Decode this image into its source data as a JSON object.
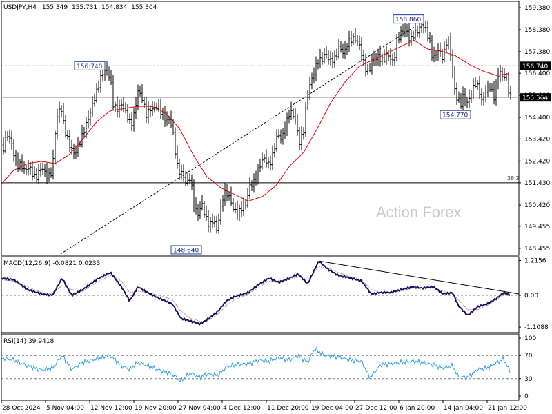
{
  "chart_data": [
    {
      "type": "ohlc",
      "header": {
        "symbol": "USDJPY,H4",
        "open": "155.349",
        "high": "155.731",
        "low": "154.834",
        "close": "155.304"
      },
      "y_ticks": [
        "159.380",
        "158.380",
        "157.380",
        "156.400",
        "155.400",
        "154.400",
        "153.420",
        "152.420",
        "151.430",
        "150.420",
        "149.455",
        "148.455"
      ],
      "ylim": [
        148.2,
        159.6
      ],
      "x_ticks": [
        "28 Oct 2024",
        "5 Nov 04:00",
        "12 Nov 12:00",
        "19 Nov 20:00",
        "27 Nov 04:00",
        "4 Dec 12:00",
        "11 Dec 20:00",
        "19 Dec 04:00",
        "27 Dec 12:00",
        "6 Jan 20:00",
        "14 Jan 04:00",
        "21 Jan 12:00"
      ],
      "price_anchors": [
        [
          0,
          153.2
        ],
        [
          3,
          153.3
        ],
        [
          5,
          153.0
        ],
        [
          10,
          153.6
        ],
        [
          16,
          153.3
        ],
        [
          21,
          152.6
        ],
        [
          24,
          152.2
        ],
        [
          30,
          152.3
        ],
        [
          36,
          151.9
        ],
        [
          43,
          152.1
        ],
        [
          52,
          151.7
        ],
        [
          60,
          152.0
        ],
        [
          68,
          151.8
        ],
        [
          76,
          152.0
        ],
        [
          81,
          154.0
        ],
        [
          88,
          155.0
        ],
        [
          94,
          153.9
        ],
        [
          102,
          152.9
        ],
        [
          108,
          152.7
        ],
        [
          112,
          153.1
        ],
        [
          120,
          153.6
        ],
        [
          128,
          154.3
        ],
        [
          136,
          155.2
        ],
        [
          141,
          155.7
        ],
        [
          147,
          156.3
        ],
        [
          154,
          156.5
        ],
        [
          160,
          156.2
        ],
        [
          164,
          155.1
        ],
        [
          170,
          154.7
        ],
        [
          178,
          154.9
        ],
        [
          186,
          154.5
        ],
        [
          190,
          154.0
        ],
        [
          196,
          154.6
        ],
        [
          200,
          155.6
        ],
        [
          206,
          155.4
        ],
        [
          212,
          154.5
        ],
        [
          220,
          154.7
        ],
        [
          228,
          155.0
        ],
        [
          234,
          154.6
        ],
        [
          240,
          154.2
        ],
        [
          246,
          154.3
        ],
        [
          250,
          153.9
        ],
        [
          254,
          152.9
        ],
        [
          258,
          152.0
        ],
        [
          264,
          151.8
        ],
        [
          270,
          151.3
        ],
        [
          276,
          151.8
        ],
        [
          282,
          150.3
        ],
        [
          288,
          149.8
        ],
        [
          292,
          150.5
        ],
        [
          298,
          150.0
        ],
        [
          304,
          149.5
        ],
        [
          310,
          149.6
        ],
        [
          314,
          149.2
        ],
        [
          318,
          150.1
        ],
        [
          324,
          151.0
        ],
        [
          330,
          150.8
        ],
        [
          338,
          150.3
        ],
        [
          346,
          150.1
        ],
        [
          352,
          150.3
        ],
        [
          356,
          150.4
        ],
        [
          362,
          151.3
        ],
        [
          368,
          151.5
        ],
        [
          374,
          152.0
        ],
        [
          382,
          152.5
        ],
        [
          390,
          152.3
        ],
        [
          396,
          152.8
        ],
        [
          402,
          153.5
        ],
        [
          408,
          153.4
        ],
        [
          414,
          154.2
        ],
        [
          420,
          154.6
        ],
        [
          428,
          154.2
        ],
        [
          434,
          153.4
        ],
        [
          440,
          153.8
        ],
        [
          444,
          154.9
        ],
        [
          450,
          156.0
        ],
        [
          456,
          156.6
        ],
        [
          460,
          157.0
        ],
        [
          466,
          156.9
        ],
        [
          472,
          157.3
        ],
        [
          478,
          157.0
        ],
        [
          486,
          157.1
        ],
        [
          492,
          157.6
        ],
        [
          498,
          157.2
        ],
        [
          504,
          157.9
        ],
        [
          510,
          158.0
        ],
        [
          516,
          157.8
        ],
        [
          522,
          157.6
        ],
        [
          528,
          156.9
        ],
        [
          534,
          156.3
        ],
        [
          540,
          156.9
        ],
        [
          548,
          157.3
        ],
        [
          556,
          156.9
        ],
        [
          562,
          157.2
        ],
        [
          570,
          157.0
        ],
        [
          576,
          157.9
        ],
        [
          582,
          158.2
        ],
        [
          588,
          158.5
        ],
        [
          594,
          157.9
        ],
        [
          600,
          158.2
        ],
        [
          606,
          158.3
        ],
        [
          612,
          158.6
        ],
        [
          618,
          158.4
        ],
        [
          622,
          158.0
        ],
        [
          626,
          157.2
        ],
        [
          630,
          157.0
        ],
        [
          636,
          157.5
        ],
        [
          642,
          157.2
        ],
        [
          648,
          157.9
        ],
        [
          652,
          157.4
        ],
        [
          656,
          156.4
        ],
        [
          660,
          155.5
        ],
        [
          664,
          155.3
        ],
        [
          668,
          155.0
        ],
        [
          672,
          155.3
        ],
        [
          676,
          154.9
        ],
        [
          682,
          155.5
        ],
        [
          688,
          156.0
        ],
        [
          694,
          155.6
        ],
        [
          698,
          155.1
        ],
        [
          704,
          155.6
        ],
        [
          710,
          155.8
        ],
        [
          716,
          155.3
        ],
        [
          720,
          156.0
        ],
        [
          724,
          156.5
        ],
        [
          728,
          156.2
        ],
        [
          732,
          156.4
        ],
        [
          736,
          155.8
        ],
        [
          740,
          155.3
        ]
      ],
      "moving_average_anchors": [
        [
          0,
          151.3
        ],
        [
          20,
          152.0
        ],
        [
          40,
          152.3
        ],
        [
          60,
          152.4
        ],
        [
          80,
          152.3
        ],
        [
          100,
          152.7
        ],
        [
          120,
          153.4
        ],
        [
          140,
          154.2
        ],
        [
          160,
          154.7
        ],
        [
          180,
          154.8
        ],
        [
          200,
          154.9
        ],
        [
          220,
          154.9
        ],
        [
          240,
          154.6
        ],
        [
          260,
          153.9
        ],
        [
          280,
          152.7
        ],
        [
          300,
          151.7
        ],
        [
          320,
          151.2
        ],
        [
          340,
          150.9
        ],
        [
          360,
          150.6
        ],
        [
          380,
          150.8
        ],
        [
          400,
          151.3
        ],
        [
          420,
          152.2
        ],
        [
          440,
          152.8
        ],
        [
          460,
          153.9
        ],
        [
          480,
          155.1
        ],
        [
          500,
          156.0
        ],
        [
          520,
          156.7
        ],
        [
          540,
          157.0
        ],
        [
          560,
          157.3
        ],
        [
          580,
          157.6
        ],
        [
          600,
          157.9
        ],
        [
          620,
          157.5
        ],
        [
          640,
          157.4
        ],
        [
          660,
          157.2
        ],
        [
          680,
          156.8
        ],
        [
          700,
          156.5
        ],
        [
          720,
          156.3
        ],
        [
          740,
          156.4
        ]
      ],
      "annotations": [
        {
          "text": "158.860",
          "price": 158.86,
          "x": 592,
          "box": "left"
        },
        {
          "text": "156:740",
          "price": 156.74,
          "x": 108,
          "box": "right"
        },
        {
          "text": "154.770",
          "price": 154.77,
          "x": 652,
          "box": "under"
        },
        {
          "text": "148.640",
          "price": 148.64,
          "x": 262,
          "box": "under"
        }
      ],
      "levels": [
        {
          "price": 156.74,
          "style": "dotted",
          "label": "156.740",
          "label_style": "dark"
        },
        {
          "price": 155.304,
          "style": "solid",
          "label": "155.304",
          "label_style": "dark"
        },
        {
          "price": 151.43,
          "style": "solid",
          "label": "38.2",
          "label_style": "plain"
        }
      ],
      "trendline": {
        "from": [
          88,
          148.2
        ],
        "to": [
          600,
          158.5
        ]
      },
      "watermark": "Action Forex"
    },
    {
      "type": "macd",
      "title": "MACD(12,26,9) -0.0821 0.0233",
      "y_ticks": [
        "1.2156",
        "0.00",
        "-1.1088"
      ],
      "ylim": [
        -1.25,
        1.3
      ],
      "zero_label": "0.00",
      "macd_anchors": [
        [
          0,
          0.6
        ],
        [
          20,
          0.55
        ],
        [
          40,
          0.2
        ],
        [
          60,
          0.05
        ],
        [
          76,
          0.0
        ],
        [
          90,
          0.6
        ],
        [
          104,
          0.0
        ],
        [
          120,
          0.2
        ],
        [
          140,
          0.55
        ],
        [
          160,
          0.8
        ],
        [
          176,
          0.3
        ],
        [
          188,
          -0.2
        ],
        [
          200,
          0.3
        ],
        [
          214,
          0.1
        ],
        [
          230,
          -0.1
        ],
        [
          250,
          -0.3
        ],
        [
          262,
          -0.8
        ],
        [
          276,
          -0.9
        ],
        [
          290,
          -1.0
        ],
        [
          300,
          -0.85
        ],
        [
          316,
          -0.55
        ],
        [
          328,
          -0.2
        ],
        [
          340,
          -0.05
        ],
        [
          360,
          0.1
        ],
        [
          376,
          0.4
        ],
        [
          390,
          0.6
        ],
        [
          404,
          0.45
        ],
        [
          420,
          0.6
        ],
        [
          432,
          0.75
        ],
        [
          446,
          0.4
        ],
        [
          462,
          1.2
        ],
        [
          476,
          0.9
        ],
        [
          490,
          0.7
        ],
        [
          508,
          0.6
        ],
        [
          524,
          0.5
        ],
        [
          538,
          0.05
        ],
        [
          552,
          0.1
        ],
        [
          566,
          0.1
        ],
        [
          582,
          0.2
        ],
        [
          598,
          0.3
        ],
        [
          612,
          0.25
        ],
        [
          628,
          0.3
        ],
        [
          642,
          0.05
        ],
        [
          656,
          0.1
        ],
        [
          664,
          -0.35
        ],
        [
          678,
          -0.7
        ],
        [
          692,
          -0.4
        ],
        [
          706,
          -0.3
        ],
        [
          720,
          -0.1
        ],
        [
          730,
          0.1
        ],
        [
          740,
          0.0
        ]
      ],
      "signal_anchors": [
        [
          0,
          0.55
        ],
        [
          20,
          0.5
        ],
        [
          40,
          0.3
        ],
        [
          60,
          0.1
        ],
        [
          76,
          0.05
        ],
        [
          90,
          0.35
        ],
        [
          104,
          0.2
        ],
        [
          120,
          0.15
        ],
        [
          140,
          0.45
        ],
        [
          160,
          0.7
        ],
        [
          176,
          0.5
        ],
        [
          188,
          0.1
        ],
        [
          200,
          0.15
        ],
        [
          214,
          0.1
        ],
        [
          230,
          0.0
        ],
        [
          250,
          -0.15
        ],
        [
          262,
          -0.55
        ],
        [
          276,
          -0.8
        ],
        [
          290,
          -0.9
        ],
        [
          300,
          -0.9
        ],
        [
          316,
          -0.65
        ],
        [
          328,
          -0.35
        ],
        [
          340,
          -0.15
        ],
        [
          360,
          0.05
        ],
        [
          376,
          0.3
        ],
        [
          390,
          0.5
        ],
        [
          404,
          0.5
        ],
        [
          420,
          0.55
        ],
        [
          432,
          0.65
        ],
        [
          446,
          0.55
        ],
        [
          462,
          1.0
        ],
        [
          476,
          0.95
        ],
        [
          490,
          0.8
        ],
        [
          508,
          0.65
        ],
        [
          524,
          0.55
        ],
        [
          538,
          0.2
        ],
        [
          552,
          0.1
        ],
        [
          566,
          0.1
        ],
        [
          582,
          0.15
        ],
        [
          598,
          0.25
        ],
        [
          612,
          0.25
        ],
        [
          628,
          0.28
        ],
        [
          642,
          0.15
        ],
        [
          656,
          0.05
        ],
        [
          664,
          -0.15
        ],
        [
          678,
          -0.5
        ],
        [
          692,
          -0.5
        ],
        [
          706,
          -0.35
        ],
        [
          720,
          -0.15
        ],
        [
          730,
          0.05
        ],
        [
          740,
          0.05
        ]
      ],
      "trendline": {
        "from": [
          462,
          1.2
        ],
        "to": [
          752,
          0.05
        ]
      }
    },
    {
      "type": "rsi",
      "title": "RSI(14) 39.9418",
      "y_ticks": [
        "100",
        "70",
        "30",
        "0"
      ],
      "levels": [
        70,
        30
      ],
      "rsi_anchors": [
        [
          0,
          66
        ],
        [
          20,
          62
        ],
        [
          40,
          52
        ],
        [
          60,
          45
        ],
        [
          76,
          48
        ],
        [
          90,
          70
        ],
        [
          104,
          46
        ],
        [
          120,
          58
        ],
        [
          140,
          64
        ],
        [
          160,
          70
        ],
        [
          176,
          52
        ],
        [
          188,
          46
        ],
        [
          200,
          58
        ],
        [
          214,
          52
        ],
        [
          230,
          45
        ],
        [
          250,
          38
        ],
        [
          262,
          26
        ],
        [
          276,
          40
        ],
        [
          290,
          32
        ],
        [
          300,
          38
        ],
        [
          316,
          36
        ],
        [
          328,
          50
        ],
        [
          340,
          54
        ],
        [
          360,
          56
        ],
        [
          376,
          62
        ],
        [
          390,
          60
        ],
        [
          404,
          66
        ],
        [
          420,
          62
        ],
        [
          432,
          70
        ],
        [
          446,
          58
        ],
        [
          456,
          82
        ],
        [
          470,
          70
        ],
        [
          488,
          68
        ],
        [
          508,
          62
        ],
        [
          524,
          60
        ],
        [
          536,
          32
        ],
        [
          552,
          54
        ],
        [
          566,
          56
        ],
        [
          582,
          58
        ],
        [
          598,
          60
        ],
        [
          612,
          58
        ],
        [
          628,
          54
        ],
        [
          642,
          48
        ],
        [
          656,
          52
        ],
        [
          664,
          34
        ],
        [
          678,
          32
        ],
        [
          692,
          46
        ],
        [
          706,
          48
        ],
        [
          720,
          58
        ],
        [
          730,
          64
        ],
        [
          740,
          40
        ]
      ]
    }
  ]
}
